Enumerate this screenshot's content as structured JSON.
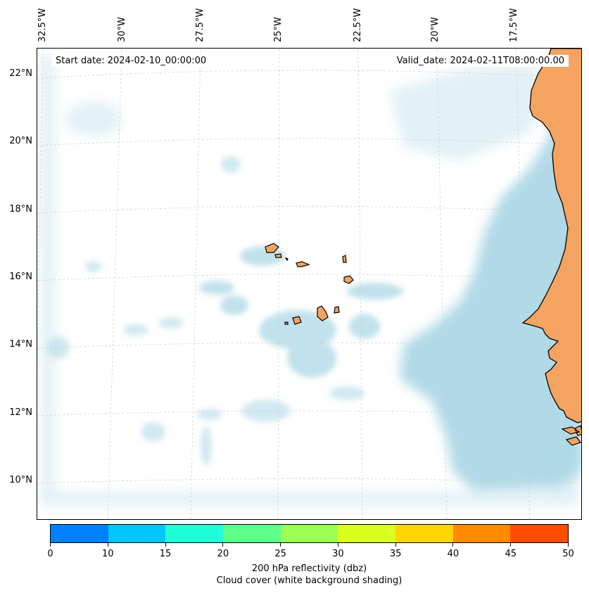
{
  "map": {
    "start_date": "Start date: 2024-02-10_00:00:00",
    "valid_date": "Valid_date: 2024-02-11T08:00:00.00",
    "longitude_labels": [
      "32.5°W",
      "30°W",
      "27.5°W",
      "25°W",
      "22.5°W",
      "20°W",
      "17.5°W"
    ],
    "latitude_labels": [
      "22°N",
      "20°N",
      "18°N",
      "16°N",
      "14°N",
      "12°N",
      "10°N"
    ],
    "colors": {
      "land": "#f4a460",
      "cloud": "#add8e6",
      "grid": "#cccccc",
      "coast": "#000000"
    }
  },
  "colorbar": {
    "ticks": [
      "0",
      "10",
      "15",
      "20",
      "25",
      "30",
      "35",
      "40",
      "45",
      "50"
    ],
    "colors": [
      "#007fff",
      "#00c8ff",
      "#1effd8",
      "#5eff8a",
      "#9cff55",
      "#d8ff1e",
      "#ffd500",
      "#ff8c00",
      "#ff4c00"
    ],
    "label": "200 hPa reflectivity (dbz)",
    "sublabel": "Cloud cover (white background shading)"
  }
}
